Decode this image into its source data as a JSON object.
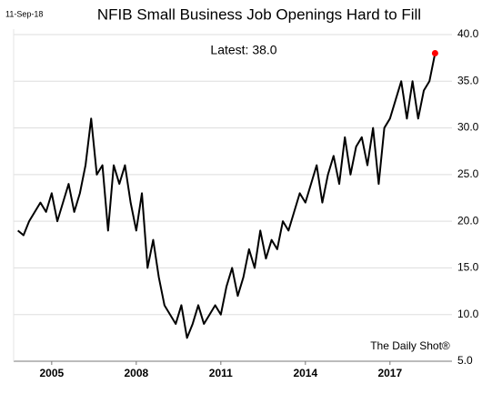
{
  "chart_data": {
    "type": "line",
    "title": "NFIB Small Business Job Openings Hard to Fill",
    "date": "11-Sep-18",
    "annotation": "Latest:  38.0",
    "source": "The Daily Shot®",
    "color": "#000000",
    "marker_color": "#ff0000",
    "grid": true,
    "x": [
      2003.8,
      2004.0,
      2004.2,
      2004.4,
      2004.6,
      2004.8,
      2005.0,
      2005.2,
      2005.4,
      2005.6,
      2005.8,
      2006.0,
      2006.2,
      2006.4,
      2006.6,
      2006.8,
      2007.0,
      2007.2,
      2007.4,
      2007.6,
      2007.8,
      2008.0,
      2008.2,
      2008.4,
      2008.6,
      2008.8,
      2009.0,
      2009.2,
      2009.4,
      2009.6,
      2009.8,
      2010.0,
      2010.2,
      2010.4,
      2010.6,
      2010.8,
      2011.0,
      2011.2,
      2011.4,
      2011.6,
      2011.8,
      2012.0,
      2012.2,
      2012.4,
      2012.6,
      2012.8,
      2013.0,
      2013.2,
      2013.4,
      2013.6,
      2013.8,
      2014.0,
      2014.2,
      2014.4,
      2014.6,
      2014.8,
      2015.0,
      2015.2,
      2015.4,
      2015.6,
      2015.8,
      2016.0,
      2016.2,
      2016.4,
      2016.6,
      2016.8,
      2017.0,
      2017.2,
      2017.4,
      2017.6,
      2017.8,
      2018.0,
      2018.2,
      2018.4,
      2018.6
    ],
    "values": [
      19,
      18.5,
      20,
      21,
      22,
      21,
      23,
      20,
      22,
      24,
      21,
      23,
      26,
      31,
      25,
      26,
      19,
      26,
      24,
      26,
      22,
      19,
      23,
      15,
      18,
      14,
      11,
      10,
      9,
      11,
      7.5,
      9,
      11,
      9,
      10,
      11,
      10,
      13,
      15,
      12,
      14,
      17,
      15,
      19,
      16,
      18,
      17,
      20,
      19,
      21,
      23,
      22,
      24,
      26,
      22,
      25,
      27,
      24,
      29,
      25,
      28,
      29,
      26,
      30,
      24,
      30,
      31,
      33,
      35,
      31,
      35,
      31,
      34,
      35,
      38
    ],
    "xlim": [
      2003.65,
      2019.2
    ],
    "xticks": [
      2005,
      2008,
      2011,
      2014,
      2017
    ],
    "ylim": [
      5,
      40
    ],
    "yticks": [
      {
        "value": 5,
        "label": "5.0"
      },
      {
        "value": 10,
        "label": "10.0"
      },
      {
        "value": 15,
        "label": "15.0"
      },
      {
        "value": 20,
        "label": "20.0"
      },
      {
        "value": 25,
        "label": "25.0"
      },
      {
        "value": 30,
        "label": "30.0"
      },
      {
        "value": 35,
        "label": "35.0"
      },
      {
        "value": 40,
        "label": "40.0"
      }
    ]
  }
}
